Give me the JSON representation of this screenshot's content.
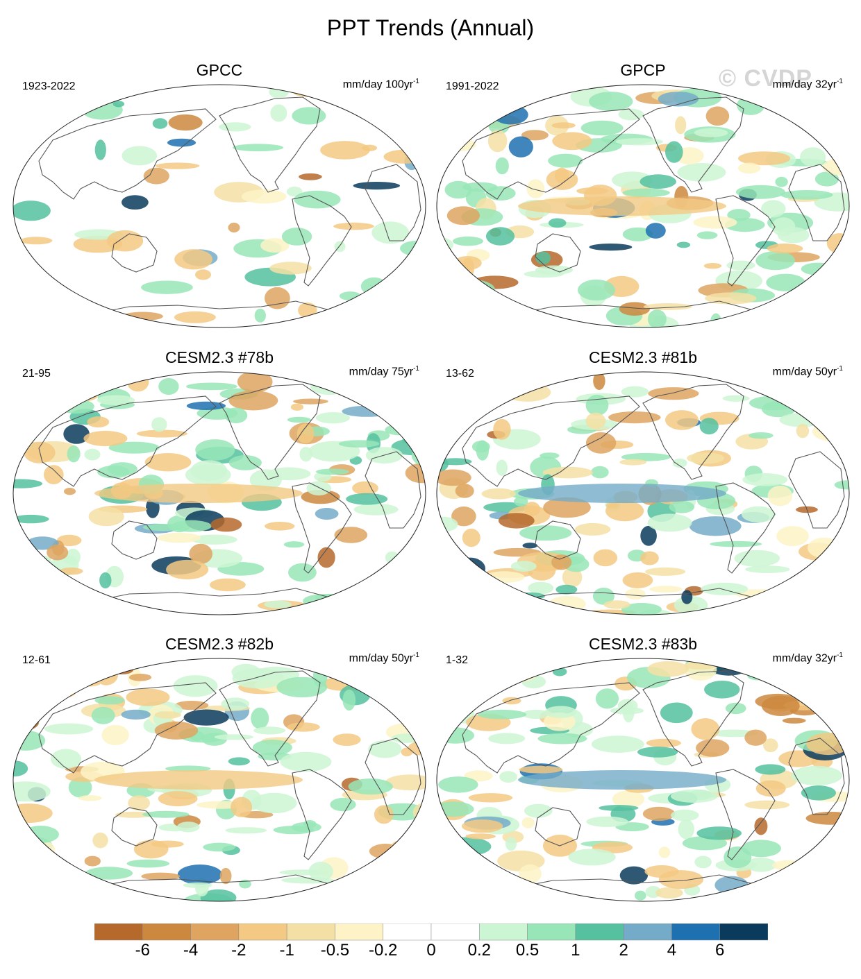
{
  "title": "PPT Trends (Annual)",
  "watermark": "© CVDP",
  "colors": {
    "land_outline": "#555555",
    "frame": "#222222",
    "bins": [
      "#b5692b",
      "#cd8840",
      "#dea460",
      "#f3c983",
      "#f4e0a4",
      "#fdf3c6",
      "#ffffff",
      "#ffffff",
      "#ccf6d3",
      "#98e6b7",
      "#55c19f",
      "#74abc8",
      "#1e71b0",
      "#0a3b5c"
    ]
  },
  "panels": [
    {
      "id": "gpcc",
      "title": "GPCC",
      "period": "1923-2022",
      "units": "mm/day 100yr",
      "exp": "-1",
      "land_only": true
    },
    {
      "id": "gpcp",
      "title": "GPCP",
      "period": "1991-2022",
      "units": "mm/day 32yr",
      "exp": "-1",
      "land_only": false
    },
    {
      "id": "m78",
      "title": "CESM2.3 #78b",
      "period": "21-95",
      "units": "mm/day 75yr",
      "exp": "-1",
      "land_only": false
    },
    {
      "id": "m81",
      "title": "CESM2.3 #81b",
      "period": "13-62",
      "units": "mm/day 50yr",
      "exp": "-1",
      "land_only": false
    },
    {
      "id": "m82",
      "title": "CESM2.3 #82b",
      "period": "12-61",
      "units": "mm/day 50yr",
      "exp": "-1",
      "land_only": false
    },
    {
      "id": "m83",
      "title": "CESM2.3 #83b",
      "period": "1-32",
      "units": "mm/day 32yr",
      "exp": "-1",
      "land_only": false
    }
  ],
  "colorbar": {
    "labels": [
      "-6",
      "-4",
      "-2",
      "-1",
      "-0.5",
      "-0.2",
      "0",
      "0.2",
      "0.5",
      "1",
      "2",
      "4",
      "6"
    ]
  }
}
